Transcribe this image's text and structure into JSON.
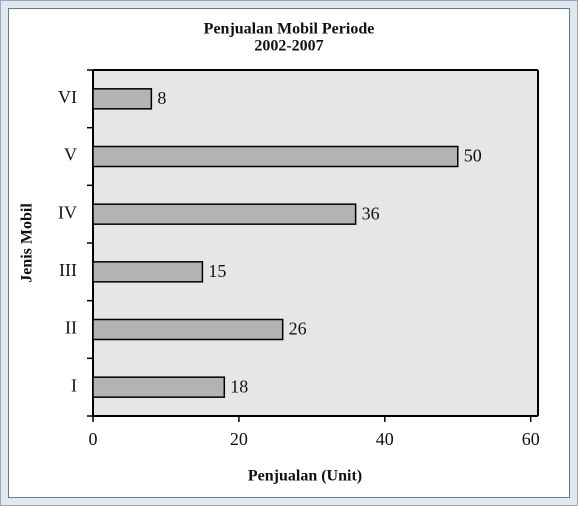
{
  "chart_data": {
    "type": "bar",
    "orientation": "horizontal",
    "title": [
      "Penjualan Mobil Periode",
      "2002-2007"
    ],
    "xlabel": "Penjualan (Unit)",
    "ylabel": "Jenis Mobil",
    "categories": [
      "I",
      "II",
      "III",
      "IV",
      "V",
      "VI"
    ],
    "values": [
      18,
      26,
      15,
      36,
      50,
      8
    ],
    "color": "#b3b3b3",
    "xlim": [
      0,
      61
    ],
    "xticks": [
      0,
      20,
      40,
      60
    ]
  }
}
